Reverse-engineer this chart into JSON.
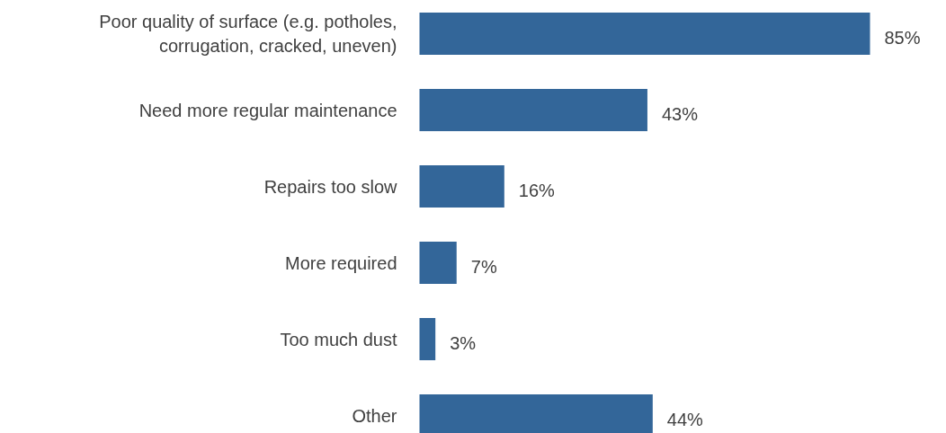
{
  "chart_data": {
    "type": "bar",
    "orientation": "horizontal",
    "categories": [
      "Poor quality of surface (e.g. potholes,\ncorrugation, cracked, uneven)",
      "Need more regular maintenance",
      "Repairs too slow",
      "More required",
      "Too much dust",
      "Other"
    ],
    "values": [
      85,
      43,
      16,
      7,
      3,
      44
    ],
    "color": "#336699",
    "value_labels": [
      "85%",
      "43%",
      "16%",
      "7%",
      "3%",
      "44%"
    ],
    "grid": false,
    "tick_labels": false
  }
}
